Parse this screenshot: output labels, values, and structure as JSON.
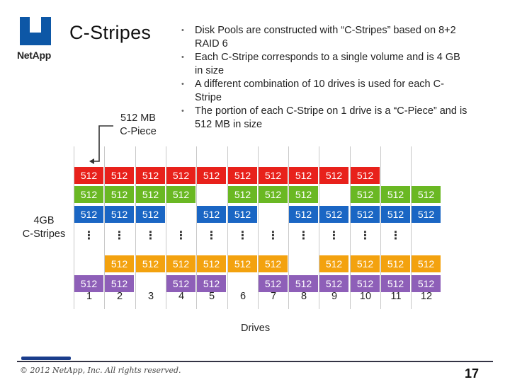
{
  "logo": {
    "text": "NetApp"
  },
  "title": "C-Stripes",
  "bullets": [
    "Disk Pools are constructed with “C-Stripes” based on 8+2 RAID 6",
    "Each C-Stripe corresponds to a single volume and is 4 GB in size",
    "A different combination of 10 drives is used for each C-Stripe",
    "The portion of each C-Stripe on 1 drive is a “C-Piece” and is 512 MB in size"
  ],
  "callout": {
    "line1": "512 MB",
    "line2": "C-Piece"
  },
  "row_label": {
    "line1": "4GB",
    "line2": "C-Stripes"
  },
  "drives_label": "Drives",
  "piece_label": "512",
  "ellipsis": "⋮",
  "drive_numbers": [
    "1",
    "2",
    "3",
    "4",
    "5",
    "6",
    "7",
    "8",
    "9",
    "10",
    "11",
    "12"
  ],
  "stripes": [
    {
      "color": "#e8211b",
      "drives": [
        1,
        2,
        3,
        4,
        5,
        6,
        7,
        8,
        9,
        10
      ]
    },
    {
      "color": "#6ab823",
      "drives": [
        1,
        2,
        3,
        4,
        6,
        7,
        8,
        10,
        11,
        12
      ]
    },
    {
      "color": "#1a66c4",
      "drives": [
        1,
        2,
        3,
        5,
        6,
        8,
        9,
        10,
        11,
        12
      ]
    },
    {
      "color": "#f3a20f",
      "drives": [
        2,
        3,
        4,
        5,
        6,
        7,
        9,
        10,
        11,
        12
      ]
    },
    {
      "color": "#8e5fb8",
      "drives": [
        1,
        2,
        4,
        5,
        7,
        8,
        9,
        10,
        11,
        12
      ]
    }
  ],
  "ellipsis_drives": [
    1,
    2,
    3,
    4,
    5,
    6,
    7,
    8,
    9,
    10,
    11
  ],
  "copyright": "© 2012 NetApp, Inc. All rights reserved.",
  "page_number": "17"
}
